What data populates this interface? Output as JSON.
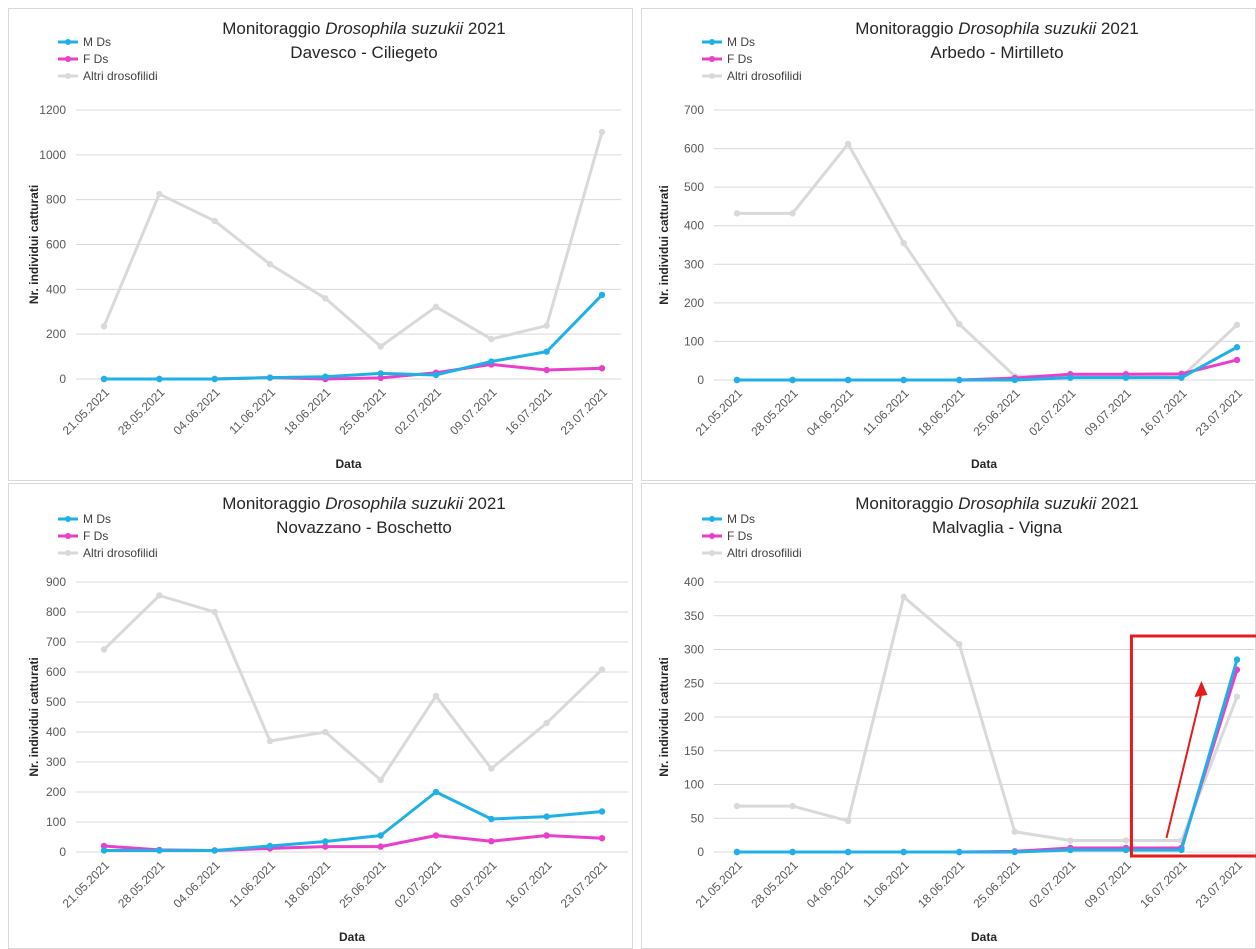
{
  "chart_data": [
    {
      "type": "line",
      "title": {
        "prefix": "Monitoraggio ",
        "species": "Drosophila suzukii",
        "suffix": " 2021",
        "subtitle": "Davesco - Ciliegeto"
      },
      "xlabel": "Data",
      "ylabel": "Nr. individui catturati",
      "ylim": [
        0,
        1200
      ],
      "yticks": [
        0,
        200,
        400,
        600,
        800,
        1000,
        1200
      ],
      "grid": true,
      "legend_position": "top-left",
      "categories": [
        "21.05.2021",
        "28.05.2021",
        "04.06.2021",
        "11.06.2021",
        "18.06.2021",
        "25.06.2021",
        "02.07.2021",
        "09.07.2021",
        "16.07.2021",
        "23.07.2021"
      ],
      "series": [
        {
          "name": "M Ds",
          "color": "#1fb1e6",
          "values": [
            0,
            0,
            0,
            6,
            10,
            25,
            18,
            78,
            122,
            375
          ]
        },
        {
          "name": "F Ds",
          "color": "#ea3fc8",
          "values": [
            0,
            0,
            0,
            6,
            0,
            5,
            28,
            65,
            40,
            48
          ]
        },
        {
          "name": "Altri drosofilidi",
          "color": "#d9d9d9",
          "values": [
            235,
            825,
            705,
            512,
            360,
            145,
            322,
            178,
            238,
            1102
          ]
        }
      ]
    },
    {
      "type": "line",
      "title": {
        "prefix": "Monitoraggio ",
        "species": "Drosophila suzukii",
        "suffix": " 2021",
        "subtitle": "Arbedo - Mirtilleto"
      },
      "xlabel": "Data",
      "ylabel": "Nr. individui catturati",
      "ylim": [
        0,
        700
      ],
      "yticks": [
        0,
        100,
        200,
        300,
        400,
        500,
        600,
        700
      ],
      "grid": true,
      "legend_position": "top-left",
      "categories": [
        "21.05.2021",
        "28.05.2021",
        "04.06.2021",
        "11.06.2021",
        "18.06.2021",
        "25.06.2021",
        "02.07.2021",
        "09.07.2021",
        "16.07.2021",
        "23.07.2021"
      ],
      "series": [
        {
          "name": "M Ds",
          "color": "#1fb1e6",
          "values": [
            0,
            0,
            0,
            0,
            0,
            0,
            6,
            6,
            6,
            85
          ]
        },
        {
          "name": "F Ds",
          "color": "#ea3fc8",
          "values": [
            0,
            0,
            0,
            0,
            0,
            5,
            15,
            15,
            16,
            52
          ]
        },
        {
          "name": "Altri drosofilidi",
          "color": "#d9d9d9",
          "values": [
            432,
            432,
            612,
            355,
            145,
            10,
            8,
            8,
            8,
            143
          ]
        }
      ]
    },
    {
      "type": "line",
      "title": {
        "prefix": "Monitoraggio ",
        "species": "Drosophila suzukii",
        "suffix": " 2021",
        "subtitle": "Novazzano - Boschetto"
      },
      "xlabel": "Data",
      "ylabel": "Nr. individui catturati",
      "ylim": [
        0,
        900
      ],
      "yticks": [
        0,
        100,
        200,
        300,
        400,
        500,
        600,
        700,
        800,
        900
      ],
      "grid": true,
      "legend_position": "top-left",
      "categories": [
        "21.05.2021",
        "28.05.2021",
        "04.06.2021",
        "11.06.2021",
        "18.06.2021",
        "25.06.2021",
        "02.07.2021",
        "09.07.2021",
        "16.07.2021",
        "23.07.2021"
      ],
      "series": [
        {
          "name": "M Ds",
          "color": "#1fb1e6",
          "values": [
            5,
            5,
            5,
            20,
            35,
            55,
            200,
            110,
            118,
            135
          ]
        },
        {
          "name": "F Ds",
          "color": "#ea3fc8",
          "values": [
            20,
            7,
            5,
            12,
            18,
            18,
            55,
            36,
            55,
            46
          ]
        },
        {
          "name": "Altri drosofilidi",
          "color": "#d9d9d9",
          "values": [
            675,
            855,
            800,
            370,
            400,
            240,
            520,
            278,
            430,
            608
          ]
        }
      ]
    },
    {
      "type": "line",
      "title": {
        "prefix": "Monitoraggio ",
        "species": "Drosophila suzukii",
        "suffix": " 2021",
        "subtitle": "Malvaglia - Vigna"
      },
      "xlabel": "Data",
      "ylabel": "Nr. individui catturati",
      "ylim": [
        0,
        400
      ],
      "yticks": [
        0,
        50,
        100,
        150,
        200,
        250,
        300,
        350,
        400
      ],
      "grid": true,
      "legend_position": "top-left",
      "highlight": {
        "box_color": "#e51c1c",
        "arrow_color": "#e51c1c"
      },
      "categories": [
        "21.05.2021",
        "28.05.2021",
        "04.06.2021",
        "11.06.2021",
        "18.06.2021",
        "25.06.2021",
        "02.07.2021",
        "09.07.2021",
        "16.07.2021",
        "23.07.2021"
      ],
      "series": [
        {
          "name": "M Ds",
          "color": "#1fb1e6",
          "values": [
            0,
            0,
            0,
            0,
            0,
            0,
            3,
            3,
            3,
            285
          ]
        },
        {
          "name": "F Ds",
          "color": "#ea3fc8",
          "values": [
            0,
            0,
            0,
            0,
            0,
            1,
            6,
            6,
            6,
            270
          ]
        },
        {
          "name": "Altri drosofilidi",
          "color": "#d9d9d9",
          "values": [
            68,
            68,
            46,
            378,
            308,
            30,
            17,
            17,
            17,
            230
          ]
        }
      ]
    }
  ]
}
